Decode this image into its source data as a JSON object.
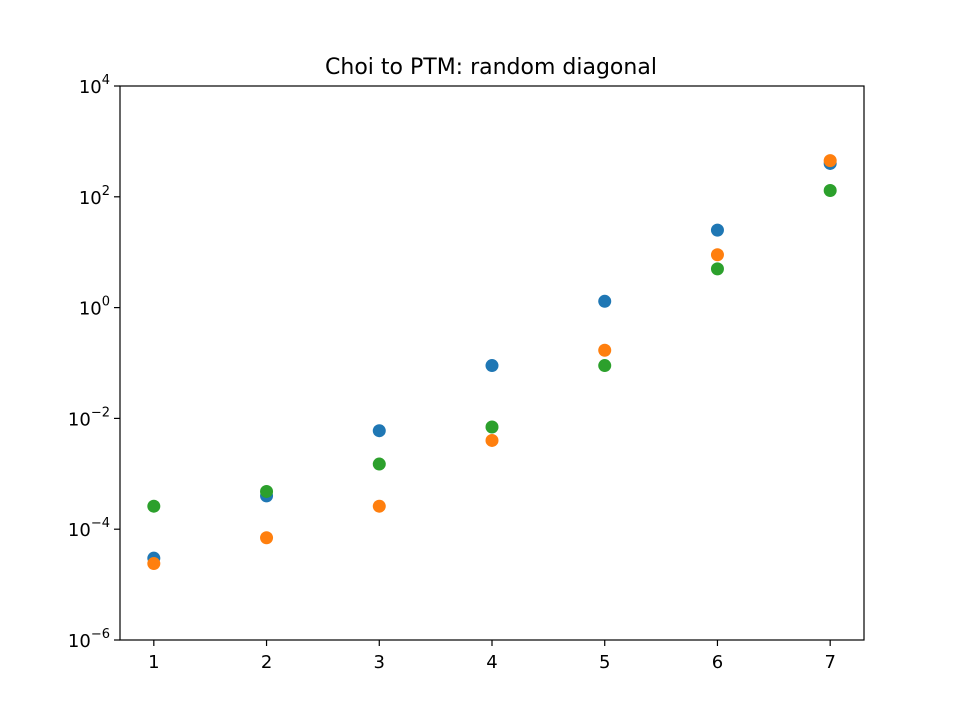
{
  "chart_data": {
    "type": "scatter",
    "title": "Choi to PTM: random diagonal",
    "xlabel": "",
    "ylabel": "",
    "x_scale": "linear",
    "y_scale": "log",
    "xlim": [
      0.7,
      7.3
    ],
    "ylim": [
      1e-06,
      10000.0
    ],
    "grid": false,
    "x_ticks": [
      1,
      2,
      3,
      4,
      5,
      6,
      7
    ],
    "x_tick_labels": [
      "1",
      "2",
      "3",
      "4",
      "5",
      "6",
      "7"
    ],
    "y_ticks": [
      1e-06,
      0.0001,
      0.01,
      1,
      100,
      10000
    ],
    "y_tick_labels": [
      {
        "base": "10",
        "exp": "−6"
      },
      {
        "base": "10",
        "exp": "−4"
      },
      {
        "base": "10",
        "exp": "−2"
      },
      {
        "base": "10",
        "exp": "0"
      },
      {
        "base": "10",
        "exp": "2"
      },
      {
        "base": "10",
        "exp": "4"
      }
    ],
    "series": [
      {
        "color": "#1f77b4",
        "x": [
          1,
          2,
          3,
          4,
          5,
          6,
          7
        ],
        "y": [
          3e-05,
          0.0004,
          0.006,
          0.09,
          1.3,
          25,
          400
        ]
      },
      {
        "color": "#ff7f0e",
        "x": [
          1,
          2,
          3,
          4,
          5,
          6,
          7
        ],
        "y": [
          2.4e-05,
          7e-05,
          0.00026,
          0.004,
          0.17,
          9,
          450
        ]
      },
      {
        "color": "#2ca02c",
        "x": [
          1,
          2,
          3,
          4,
          5,
          6,
          7
        ],
        "y": [
          0.00026,
          0.00048,
          0.0015,
          0.007,
          0.09,
          5,
          130
        ]
      }
    ]
  }
}
